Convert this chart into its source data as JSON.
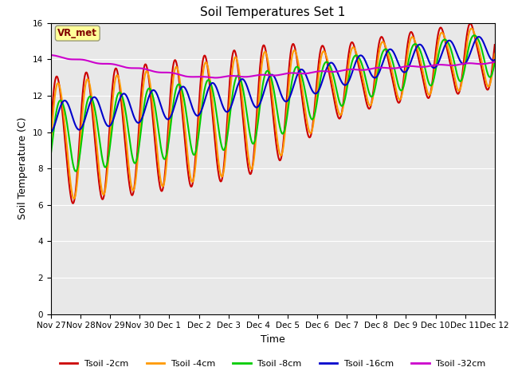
{
  "title": "Soil Temperatures Set 1",
  "xlabel": "Time",
  "ylabel": "Soil Temperature (C)",
  "ylim": [
    0,
    16
  ],
  "yticks": [
    0,
    2,
    4,
    6,
    8,
    10,
    12,
    14,
    16
  ],
  "plot_bg_color": "#e8e8e8",
  "annotation_text": "VR_met",
  "annotation_box_color": "#ffff99",
  "annotation_text_color": "#800000",
  "series_colors": {
    "Tsoil -2cm": "#cc0000",
    "Tsoil -4cm": "#ff9900",
    "Tsoil -8cm": "#00cc00",
    "Tsoil -16cm": "#0000cc",
    "Tsoil -32cm": "#cc00cc"
  },
  "xtick_labels": [
    "Nov 27",
    "Nov 28",
    "Nov 29",
    "Nov 30",
    "Dec 1",
    "Dec 2",
    "Dec 3",
    "Dec 4",
    "Dec 5",
    "Dec 6",
    "Dec 7",
    "Dec 8",
    "Dec 9",
    "Dec 10",
    "Dec 11",
    "Dec 12"
  ],
  "days": 15
}
